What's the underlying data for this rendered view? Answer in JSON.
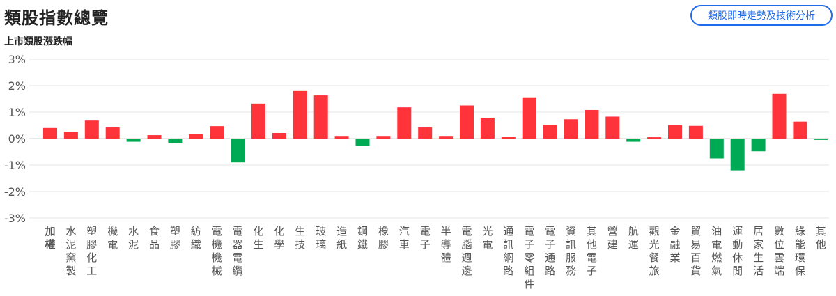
{
  "header": {
    "title": "類股指數總覽",
    "button_label": "類股即時走勢及技術分析"
  },
  "chart_data": {
    "type": "bar",
    "title": "上市類股漲跌幅",
    "ylim": [
      -3,
      3
    ],
    "yticks": [
      "3%",
      "2%",
      "1%",
      "0%",
      "-1%",
      "-2%",
      "-3%"
    ],
    "ytick_values": [
      3,
      2,
      1,
      0,
      -1,
      -2,
      -3
    ],
    "grid": true,
    "colors": {
      "up": "#ff333a",
      "down": "#00aa55",
      "grid": "#e6e6e6"
    },
    "categories": [
      "加權",
      "水泥窯製",
      "塑膠化工",
      "機電",
      "水泥",
      "食品",
      "塑膠",
      "紡織",
      "電機機械",
      "電器電纜",
      "化生",
      "化學",
      "生技",
      "玻璃",
      "造紙",
      "鋼鐵",
      "橡膠",
      "汽車",
      "電子",
      "半導體",
      "電腦週邊",
      "光電",
      "通訊網路",
      "電子零組件",
      "電子通路",
      "資訊服務",
      "其他電子",
      "營建",
      "航運",
      "觀光餐旅",
      "金融業",
      "貿易百貨",
      "油電燃氣",
      "運動休閒",
      "居家生活",
      "數位雲端",
      "綠能環保",
      "其他"
    ],
    "values": [
      0.4,
      0.26,
      0.68,
      0.42,
      -0.12,
      0.13,
      -0.18,
      0.16,
      0.47,
      -0.9,
      1.32,
      0.21,
      1.82,
      1.63,
      0.1,
      -0.27,
      0.1,
      1.18,
      0.42,
      0.1,
      1.25,
      0.79,
      0.06,
      1.56,
      0.52,
      0.73,
      1.08,
      0.83,
      -0.12,
      0.05,
      0.51,
      0.48,
      -0.75,
      -1.2,
      -0.48,
      1.69,
      0.64,
      -0.05
    ]
  }
}
